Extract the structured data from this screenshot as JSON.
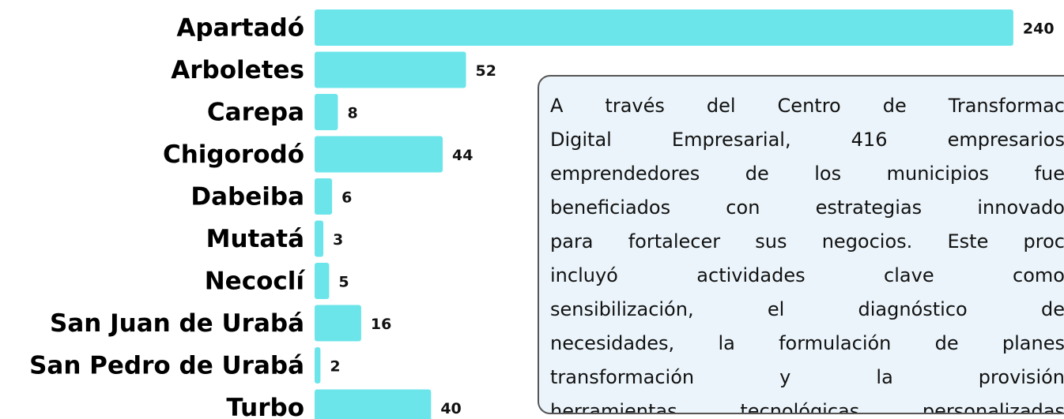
{
  "chart_data": {
    "type": "bar",
    "orientation": "horizontal",
    "categories": [
      "Apartadó",
      "Arboletes",
      "Carepa",
      "Chigorodó",
      "Dabeiba",
      "Mutatá",
      "Necoclí",
      "San Juan de Urabá",
      "San Pedro de Urabá",
      "Turbo"
    ],
    "values": [
      240,
      52,
      8,
      44,
      6,
      3,
      5,
      16,
      2,
      40
    ],
    "color": "#6ce5ea",
    "annotation": {
      "lines": [
        "A través del Centro de Transformac",
        "Digital Empresarial, 416 empresarios",
        "emprendedores de los municipios fue",
        "beneficiados con estrategias innovado",
        "para fortalecer sus negocios. Este proc",
        "incluyó actividades clave como",
        "sensibilización, el diagnóstico de",
        "necesidades, la formulación de planes",
        "transformación y la provisión",
        "herramientas tecnológicas personalizadas"
      ]
    }
  }
}
